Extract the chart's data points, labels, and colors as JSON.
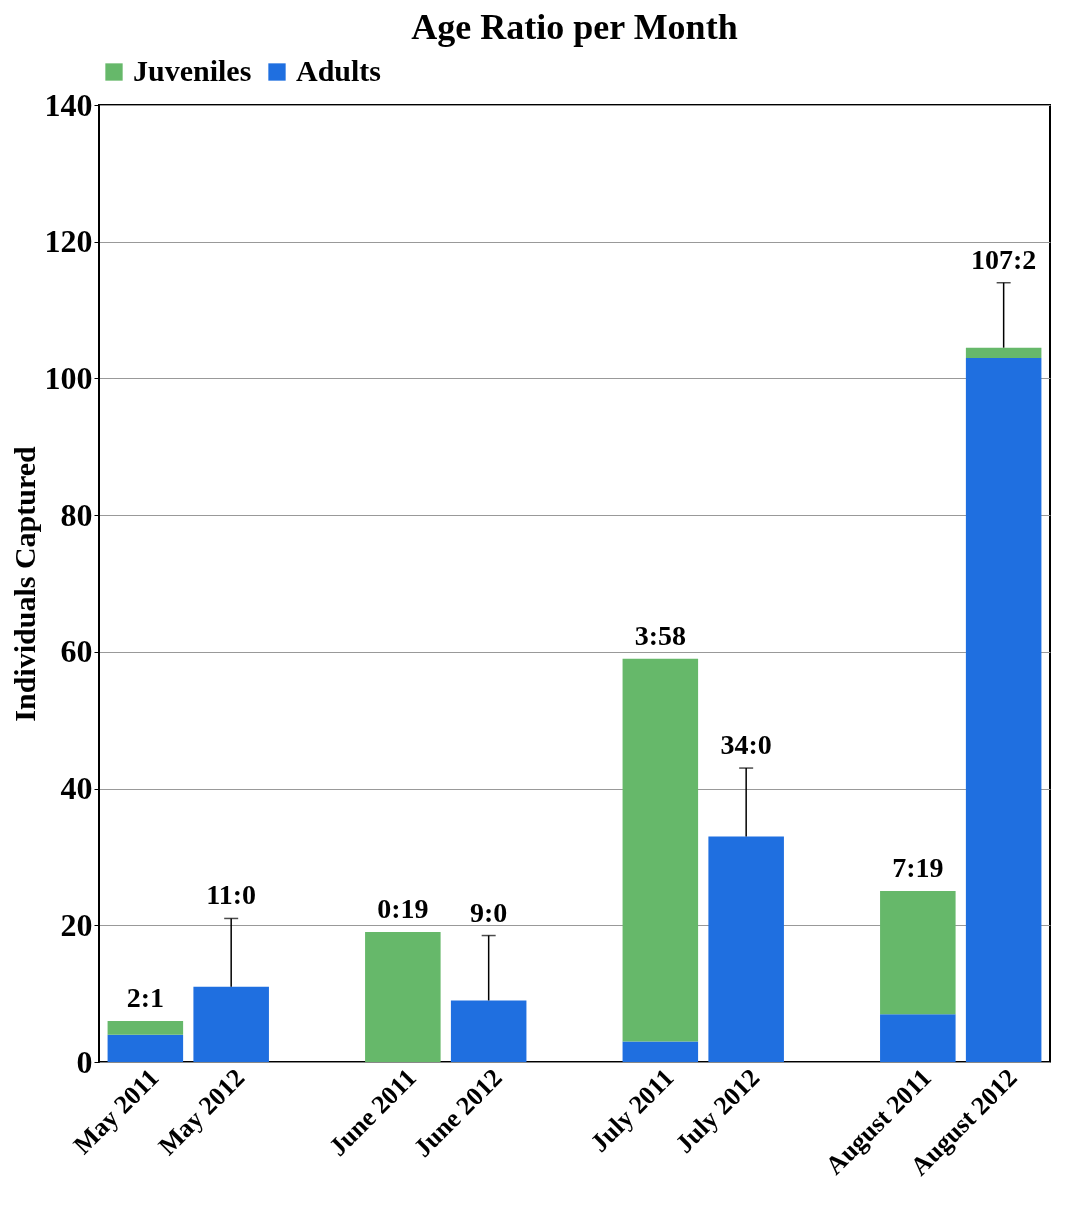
{
  "chart_data": {
    "type": "bar",
    "title": "Age Ratio per Month",
    "ylabel": "Individuals Captured",
    "categories": [
      "May 2011",
      "May 2012",
      null,
      "June 2011",
      "June 2012",
      null,
      "July 2011",
      "July 2012",
      null,
      "August 2011",
      "August 2012"
    ],
    "stacked": true,
    "series": [
      {
        "name": "Adults",
        "color": "#1f6fe0",
        "values": [
          4,
          11,
          null,
          0,
          9,
          null,
          3,
          33,
          null,
          7,
          103
        ],
        "errors": [
          null,
          [
            11,
            21
          ],
          null,
          null,
          [
            9,
            18.5
          ],
          null,
          null,
          [
            33,
            43
          ],
          null,
          null,
          null
        ]
      },
      {
        "name": "Juveniles",
        "color": "#66b86a",
        "values": [
          2,
          0,
          null,
          19,
          0,
          null,
          56,
          0,
          null,
          18,
          1.5
        ],
        "errors": [
          null,
          null,
          null,
          null,
          null,
          null,
          null,
          null,
          null,
          null,
          [
            104.5,
            114
          ]
        ]
      }
    ],
    "ylim": [
      0,
      140
    ],
    "yticks": [
      0,
      20,
      40,
      60,
      80,
      100,
      120,
      140
    ],
    "grid": "y",
    "legend": "top",
    "annotations": [
      {
        "text": "2:1",
        "x": "May 2011",
        "y": 6
      },
      {
        "text": "11:0",
        "x": "May 2012",
        "y": 21
      },
      {
        "text": "0:19",
        "x": "June 2011",
        "y": 19
      },
      {
        "text": "9:0",
        "x": "June 2012",
        "y": 18.5
      },
      {
        "text": "3:58",
        "x": "July 2011",
        "y": 59
      },
      {
        "text": "34:0",
        "x": "July 2012",
        "y": 43
      },
      {
        "text": "7:19",
        "x": "August 2011",
        "y": 25
      },
      {
        "text": "107:2",
        "x": "August 2012",
        "y": 114
      }
    ]
  }
}
